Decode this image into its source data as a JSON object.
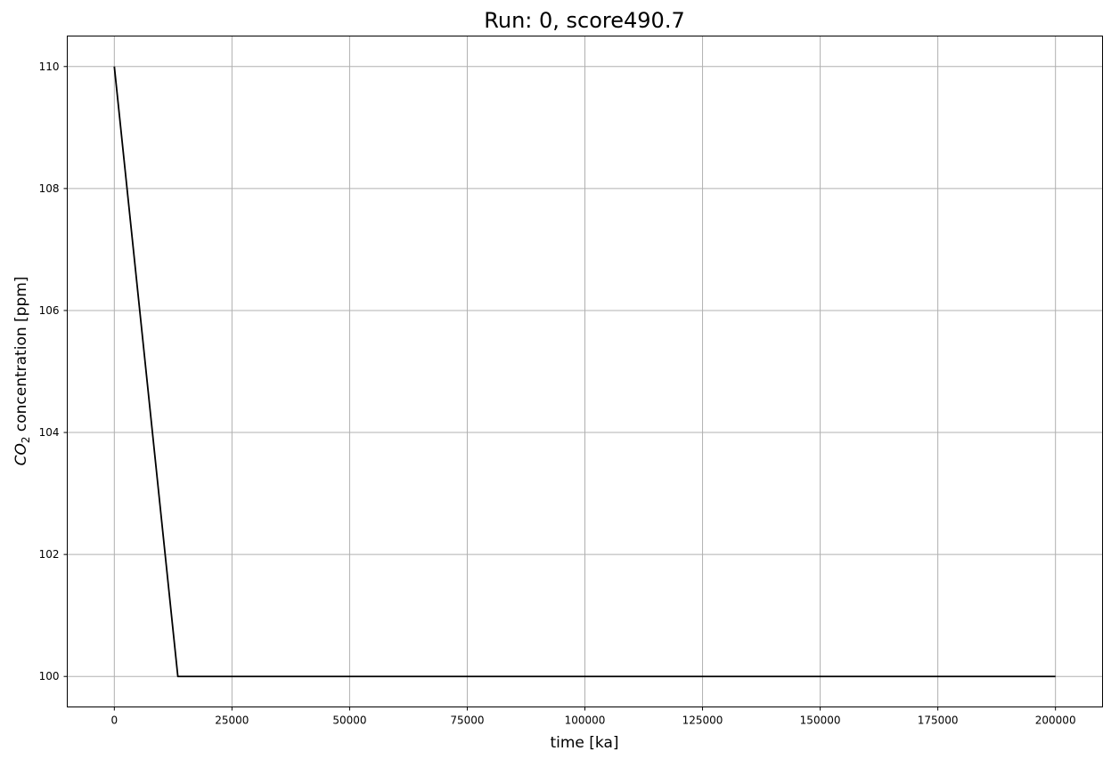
{
  "chart_data": {
    "type": "line",
    "title": "Run: 0, score490.7",
    "xlabel": "time [ka]",
    "ylabel_italic": "CO",
    "ylabel_sub": "2",
    "ylabel_rest": " concentration [ppm]",
    "xlim": [
      -10000,
      210000
    ],
    "ylim": [
      99.5,
      110.5
    ],
    "xticks": [
      0,
      25000,
      50000,
      75000,
      100000,
      125000,
      150000,
      175000,
      200000
    ],
    "yticks": [
      100,
      102,
      104,
      106,
      108,
      110
    ],
    "grid": true,
    "series": [
      {
        "color": "#000000",
        "x": [
          0,
          13500,
          200000
        ],
        "y": [
          110,
          100,
          100
        ]
      }
    ]
  }
}
